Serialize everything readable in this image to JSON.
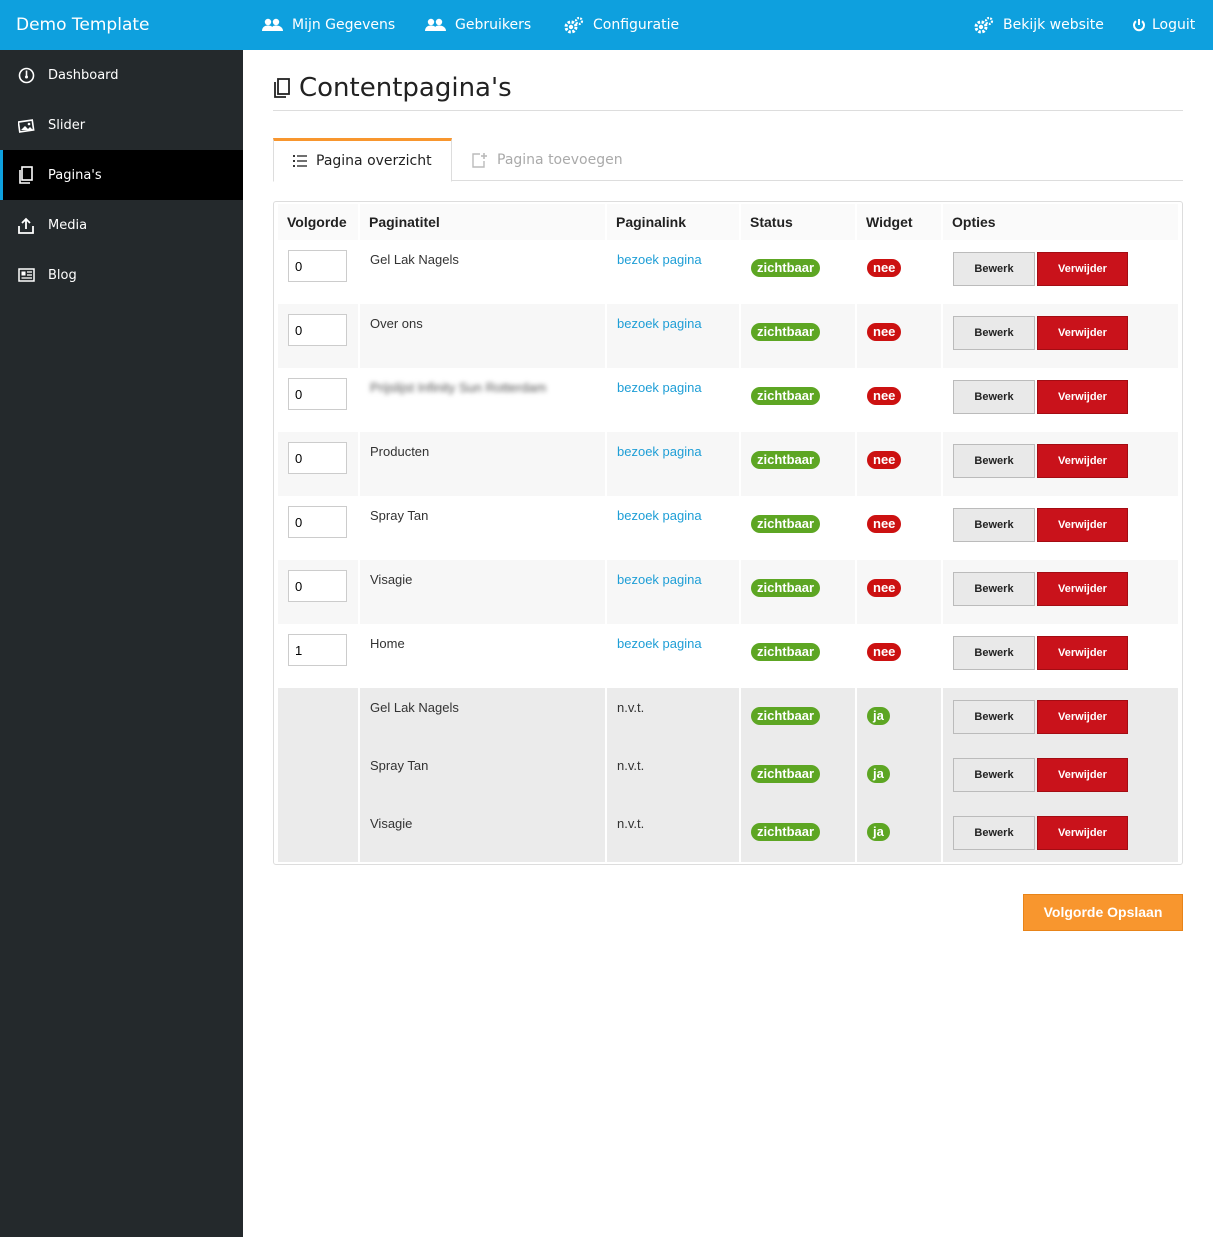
{
  "header": {
    "brand": "Demo Template",
    "nav": [
      {
        "label": "Mijn Gegevens",
        "icon": "users-icon"
      },
      {
        "label": "Gebruikers",
        "icon": "users-icon"
      },
      {
        "label": "Configuratie",
        "icon": "gears-icon"
      },
      {
        "label": "Bekijk website",
        "icon": "gears-icon"
      },
      {
        "label": "Loguit",
        "icon": "power-icon"
      }
    ]
  },
  "sidebar": {
    "items": [
      {
        "label": "Dashboard",
        "icon": "dashboard-icon",
        "active": false
      },
      {
        "label": "Slider",
        "icon": "image-icon",
        "active": false
      },
      {
        "label": "Pagina's",
        "icon": "pages-icon",
        "active": true
      },
      {
        "label": "Media",
        "icon": "upload-icon",
        "active": false
      },
      {
        "label": "Blog",
        "icon": "newspaper-icon",
        "active": false
      }
    ]
  },
  "main": {
    "title": "Contentpagina's",
    "tabs": [
      {
        "label": "Pagina overzicht",
        "icon": "list-icon",
        "active": true
      },
      {
        "label": "Pagina toevoegen",
        "icon": "add-page-icon",
        "active": false
      }
    ],
    "table": {
      "columns": [
        "Volgorde",
        "Paginatitel",
        "Paginalink",
        "Status",
        "Widget",
        "Opties"
      ],
      "rows": [
        {
          "order": "0",
          "title": "Gel Lak Nagels",
          "link": "bezoek pagina",
          "status": "zichtbaar",
          "widget": "nee",
          "edit": "Bewerk",
          "delete": "Verwijder"
        },
        {
          "order": "0",
          "title": "Over ons",
          "link": "bezoek pagina",
          "status": "zichtbaar",
          "widget": "nee",
          "edit": "Bewerk",
          "delete": "Verwijder"
        },
        {
          "order": "0",
          "title": "Prijslijst Infinity Sun Rotterdam",
          "link": "bezoek pagina",
          "status": "zichtbaar",
          "widget": "nee",
          "edit": "Bewerk",
          "delete": "Verwijder"
        },
        {
          "order": "0",
          "title": "Producten",
          "link": "bezoek pagina",
          "status": "zichtbaar",
          "widget": "nee",
          "edit": "Bewerk",
          "delete": "Verwijder"
        },
        {
          "order": "0",
          "title": "Spray Tan",
          "link": "bezoek pagina",
          "status": "zichtbaar",
          "widget": "nee",
          "edit": "Bewerk",
          "delete": "Verwijder"
        },
        {
          "order": "0",
          "title": "Visagie",
          "link": "bezoek pagina",
          "status": "zichtbaar",
          "widget": "nee",
          "edit": "Bewerk",
          "delete": "Verwijder"
        },
        {
          "order": "1",
          "title": "Home",
          "link": "bezoek pagina",
          "status": "zichtbaar",
          "widget": "nee",
          "edit": "Bewerk",
          "delete": "Verwijder"
        }
      ],
      "widget_rows": [
        {
          "title": "Gel Lak Nagels",
          "link": "n.v.t.",
          "status": "zichtbaar",
          "widget": "ja",
          "edit": "Bewerk",
          "delete": "Verwijder"
        },
        {
          "title": "Spray Tan",
          "link": "n.v.t.",
          "status": "zichtbaar",
          "widget": "ja",
          "edit": "Bewerk",
          "delete": "Verwijder"
        },
        {
          "title": "Visagie",
          "link": "n.v.t.",
          "status": "zichtbaar",
          "widget": "ja",
          "edit": "Bewerk",
          "delete": "Verwijder"
        }
      ]
    },
    "save_button": "Volgorde Opslaan"
  },
  "colors": {
    "topbar": "#0ea0de",
    "sidebar": "#24292c",
    "accent": "#f8962e",
    "status_green": "#5da623",
    "danger_red": "#c9121b",
    "link": "#1e9ed6"
  }
}
